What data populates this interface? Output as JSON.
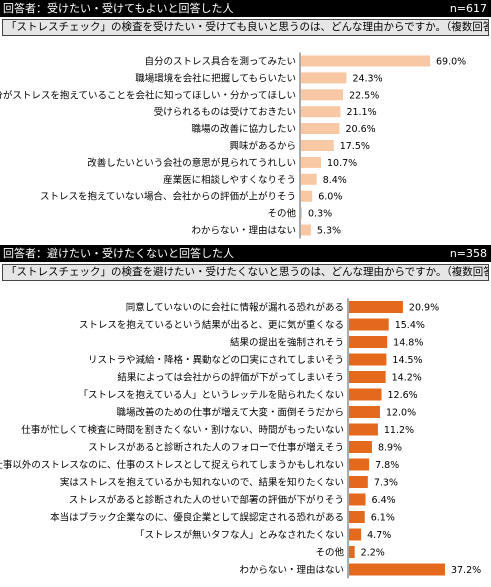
{
  "sections": [
    {
      "respondent_label": "回答者：受けたい・受けてもよいと回答した人",
      "n_label": "n=617",
      "question": "「ストレスチェック」の検査を受けたい・受けても良いと思うのは、どんな理由からですか。（複数回答）"
    },
    {
      "respondent_label": "回答者：避けたい・受けたくないと回答した人",
      "n_label": "n=358",
      "question": "「ストレスチェック」の検査を避けたい・受けたくないと思うのは、どんな理由からですか。（複数回答）"
    }
  ],
  "chart_data": [
    {
      "type": "bar",
      "orientation": "horizontal",
      "unit": "%",
      "color": "#f8c7a4",
      "categories": [
        "自分のストレス具合を測ってみたい",
        "職場環境を会社に把握してもらいたい",
        "自分がストレスを抱えていることを会社に知ってほしい・分かってほしい",
        "受けられるものは受けておきたい",
        "職場の改善に協力したい",
        "興味があるから",
        "改善したいという会社の意思が見られてうれしい",
        "産業医に相談しやすくなりそう",
        "ストレスを抱えていない場合、会社からの評価が上がりそう",
        "その他",
        "わからない・理由はない"
      ],
      "values": [
        69.0,
        24.3,
        22.5,
        21.1,
        20.6,
        17.5,
        10.7,
        8.4,
        6.0,
        0.3,
        5.3
      ],
      "value_labels": [
        "69.0%",
        "24.3%",
        "22.5%",
        "21.1%",
        "20.6%",
        "17.5%",
        "10.7%",
        "8.4%",
        "6.0%",
        "0.3%",
        "5.3%"
      ]
    },
    {
      "type": "bar",
      "orientation": "horizontal",
      "unit": "%",
      "color": "#e5691c",
      "categories": [
        "同意していないのに会社に情報が漏れる恐れがある",
        "ストレスを抱えているという結果が出ると、更に気が重くなる",
        "結果の提出を強制されそう",
        "リストラや減給・降格・異動などの口実にされてしまいそう",
        "結果によっては会社からの評価が下がってしまいそう",
        "「ストレスを抱えている人」というレッテルを貼られたくない",
        "職場改善のための仕事が増えて大変・面倒そうだから",
        "仕事が忙しくて検査に時間を割きたくない・割けない、時間がもったいない",
        "ストレスがあると診断された人のフォローで仕事が増えそう",
        "仕事以外のストレスなのに、仕事のストレスとして捉えられてしまうかもしれない",
        "実はストレスを抱えているかも知れないので、結果を知りたくない",
        "ストレスがあると診断された人のせいで部署の評価が下がりそう",
        "本当はブラック企業なのに、優良企業として誤認定される恐れがある",
        "「ストレスが無いタフな人」とみなされたくない",
        "その他",
        "わからない・理由はない"
      ],
      "values": [
        20.9,
        15.4,
        14.8,
        14.5,
        14.2,
        12.6,
        12.0,
        11.2,
        8.9,
        7.8,
        7.3,
        6.4,
        6.1,
        4.7,
        2.2,
        37.2
      ],
      "value_labels": [
        "20.9%",
        "15.4%",
        "14.8%",
        "14.5%",
        "14.2%",
        "12.6%",
        "12.0%",
        "11.2%",
        "8.9%",
        "7.8%",
        "7.3%",
        "6.4%",
        "6.1%",
        "4.7%",
        "2.2%",
        "37.2%"
      ]
    }
  ]
}
